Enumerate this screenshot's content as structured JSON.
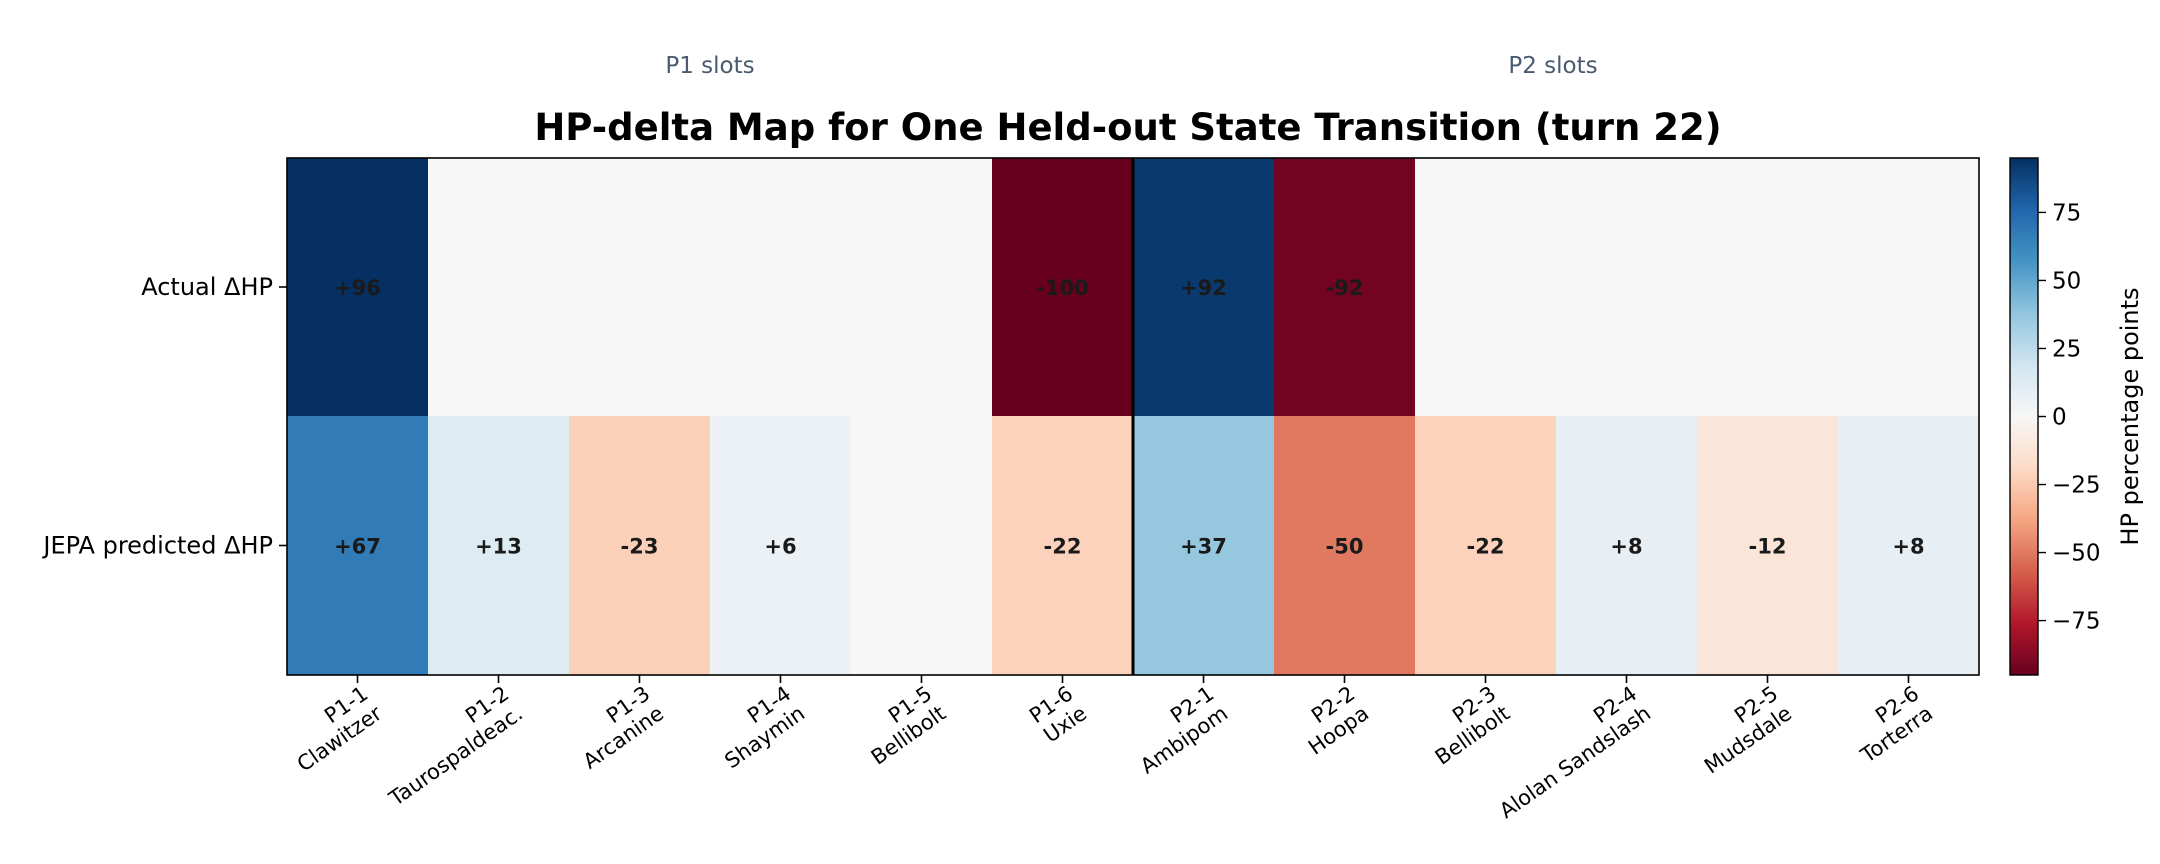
{
  "chart_data": {
    "type": "heatmap",
    "title": "HP-delta Map for One Held-out State Transition (turn 22)",
    "group_labels": [
      "P1 slots",
      "P2 slots"
    ],
    "rows": [
      "Actual ΔHP",
      "JEPA predicted ΔHP"
    ],
    "columns": [
      [
        "P1-1",
        "Clawitzer"
      ],
      [
        "P1-2",
        "Taurospaldeac."
      ],
      [
        "P1-3",
        "Arcanine"
      ],
      [
        "P1-4",
        "Shaymin"
      ],
      [
        "P1-5",
        "Bellibolt"
      ],
      [
        "P1-6",
        "Uxie"
      ],
      [
        "P2-1",
        "Ambipom"
      ],
      [
        "P2-2",
        "Hoopa"
      ],
      [
        "P2-3",
        "Bellibolt"
      ],
      [
        "P2-4",
        "Alolan Sandslash"
      ],
      [
        "P2-5",
        "Mudsdale"
      ],
      [
        "P2-6",
        "Torterra"
      ]
    ],
    "values": [
      [
        96,
        0,
        0,
        0,
        0,
        -100,
        92,
        -92,
        0,
        0,
        0,
        0
      ],
      [
        67,
        13,
        -23,
        6,
        0,
        -22,
        37,
        -50,
        -22,
        8,
        -12,
        8
      ]
    ],
    "cell_labels": [
      [
        "+96",
        "",
        "",
        "",
        "",
        "-100",
        "+92",
        "-92",
        "",
        "",
        "",
        ""
      ],
      [
        "+67",
        "+13",
        "-23",
        "+6",
        "",
        "-22",
        "+37",
        "-50",
        "-22",
        "+8",
        "-12",
        "+8"
      ]
    ],
    "colormap": "RdBu",
    "vmin": -95,
    "vmax": 95,
    "colorbar": {
      "label": "HP percentage points",
      "ticks": [
        75,
        50,
        25,
        0,
        -25,
        -50,
        -75
      ],
      "tick_labels": [
        "75",
        "50",
        "25",
        "0",
        "−25",
        "−50",
        "−75"
      ]
    }
  }
}
